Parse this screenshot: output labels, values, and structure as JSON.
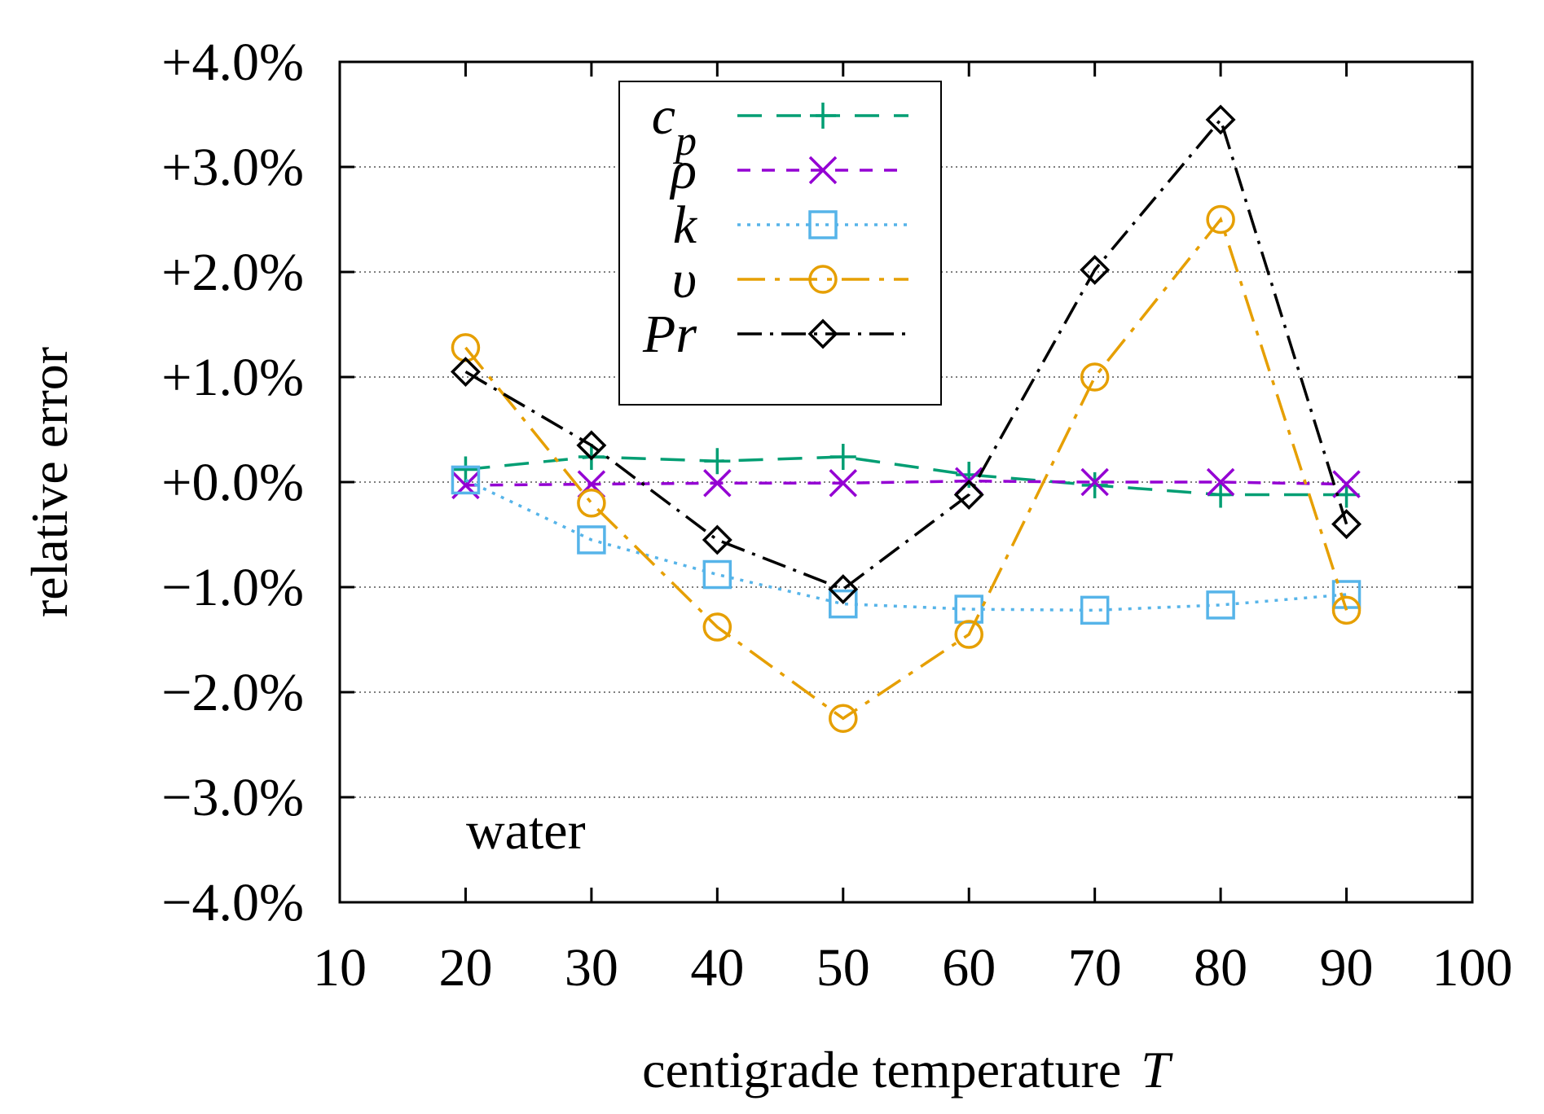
{
  "chart_data": {
    "type": "line",
    "title": "",
    "xlabel": "centigrade temperature",
    "xlabel_symbol": "T",
    "ylabel": "relative error",
    "annotation": "water",
    "xlim": [
      10,
      100
    ],
    "ylim": [
      -4.0,
      4.0
    ],
    "xticks": [
      10,
      20,
      30,
      40,
      50,
      60,
      70,
      80,
      90,
      100
    ],
    "xtick_labels": [
      "10",
      "20",
      "30",
      "40",
      "50",
      "60",
      "70",
      "80",
      "90",
      "100"
    ],
    "yticks": [
      4,
      3,
      2,
      1,
      0,
      -1,
      -2,
      -3,
      -4
    ],
    "ytick_labels": [
      "+4.0%",
      "+3.0%",
      "+2.0%",
      "+1.0%",
      "+0.0%",
      "−1.0%",
      "−2.0%",
      "−3.0%",
      "−4.0%"
    ],
    "grid": true,
    "legend_position": "top-center",
    "series": [
      {
        "name": "c_p",
        "label_main": "c",
        "label_sub": "p",
        "color": "#009e73",
        "marker": "plus",
        "dash": "30,18",
        "x": [
          20,
          30,
          40,
          50,
          60,
          70,
          80,
          90
        ],
        "y": [
          0.12,
          0.24,
          0.2,
          0.24,
          0.07,
          -0.03,
          -0.12,
          -0.12
        ]
      },
      {
        "name": "rho",
        "label_main": "ρ",
        "label_sub": "",
        "color": "#9400d3",
        "marker": "cross",
        "dash": "16,14",
        "x": [
          20,
          30,
          40,
          50,
          60,
          70,
          80,
          90
        ],
        "y": [
          -0.03,
          -0.02,
          -0.01,
          -0.01,
          0.01,
          0.0,
          0.0,
          -0.02
        ]
      },
      {
        "name": "k",
        "label_main": "k",
        "label_sub": "",
        "color": "#56b4e9",
        "marker": "square",
        "dash": "4,8",
        "x": [
          20,
          30,
          40,
          50,
          60,
          70,
          80,
          90
        ],
        "y": [
          0.02,
          -0.55,
          -0.88,
          -1.16,
          -1.21,
          -1.22,
          -1.17,
          -1.07
        ]
      },
      {
        "name": "nu",
        "label_main": "υ",
        "label_sub": "",
        "color": "#e69f00",
        "marker": "circle",
        "dash": "34,12,6,12",
        "x": [
          20,
          30,
          40,
          50,
          60,
          70,
          80,
          90
        ],
        "y": [
          1.28,
          -0.2,
          -1.38,
          -2.25,
          -1.45,
          1.0,
          2.5,
          -1.22
        ]
      },
      {
        "name": "Pr",
        "label_main": "Pr",
        "label_sub": "",
        "color": "#000000",
        "marker": "diamond",
        "dash": "30,10,4,10",
        "x": [
          20,
          30,
          40,
          50,
          60,
          70,
          80,
          90
        ],
        "y": [
          1.05,
          0.35,
          -0.55,
          -1.02,
          -0.12,
          2.02,
          3.45,
          -0.4
        ]
      }
    ]
  }
}
